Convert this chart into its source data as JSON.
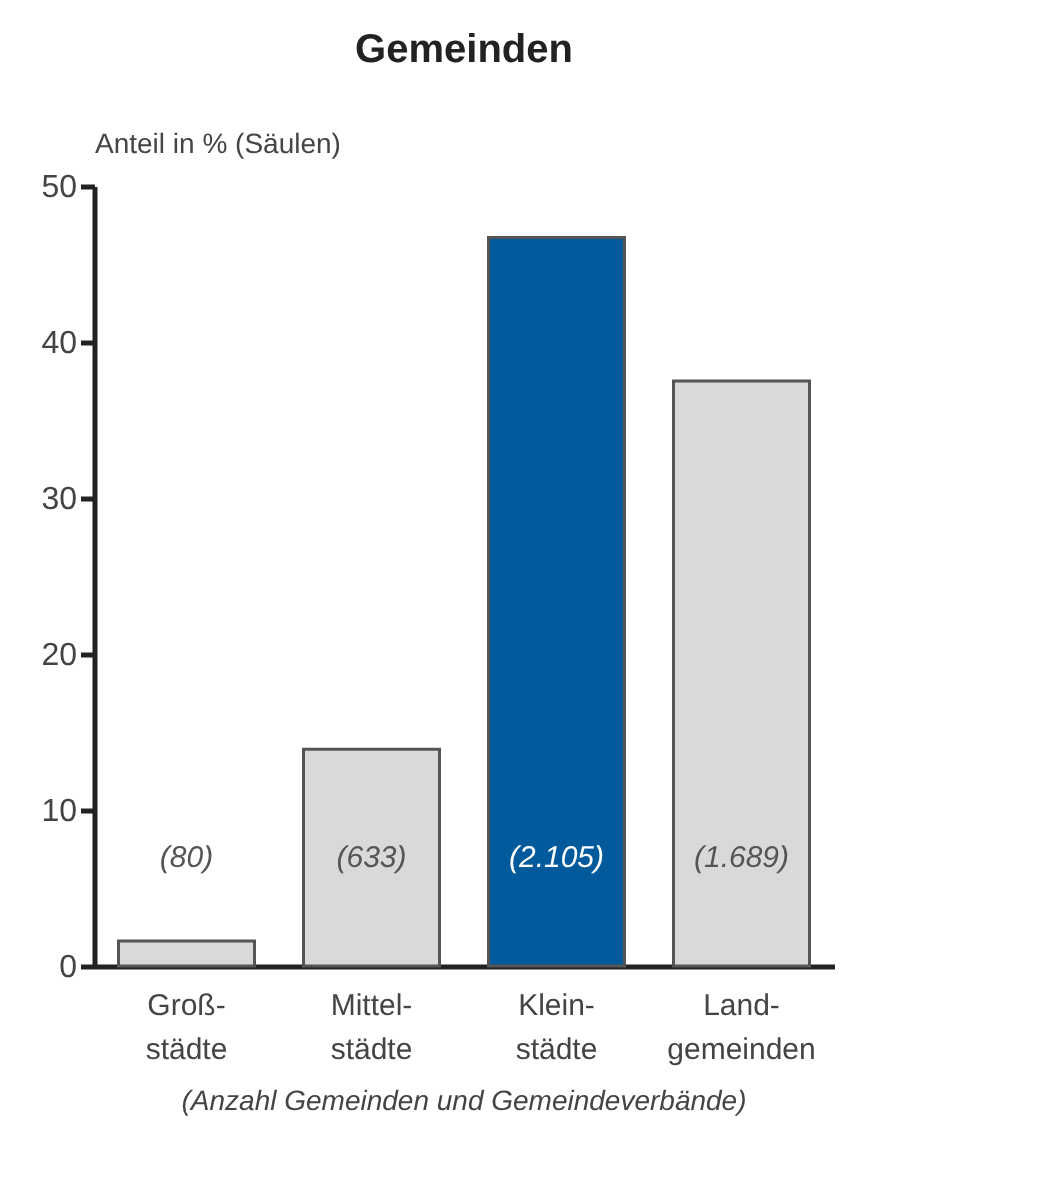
{
  "chart_data": {
    "type": "bar",
    "title": "Gemeinden",
    "ylabel": "Anteil in % (Säulen)",
    "categories": [
      "Groß-\nstädte",
      "Mittel-\nstädte",
      "Klein-\nstädte",
      "Land-\ngemeinden"
    ],
    "values": [
      1.6,
      13.9,
      46.7,
      37.5
    ],
    "colors": [
      "#d9d9db",
      "#d9d9db",
      "#005a9c",
      "#d9d9db"
    ],
    "annotations": [
      "(80)",
      "(633)",
      "(2.105)",
      "(1.689)",
      "(Anzahl Gemeinden und Gemeindeverbände)"
    ],
    "ylim": [
      0,
      50
    ],
    "yticks": [
      0,
      10,
      20,
      30,
      40,
      50
    ],
    "grid": false
  }
}
